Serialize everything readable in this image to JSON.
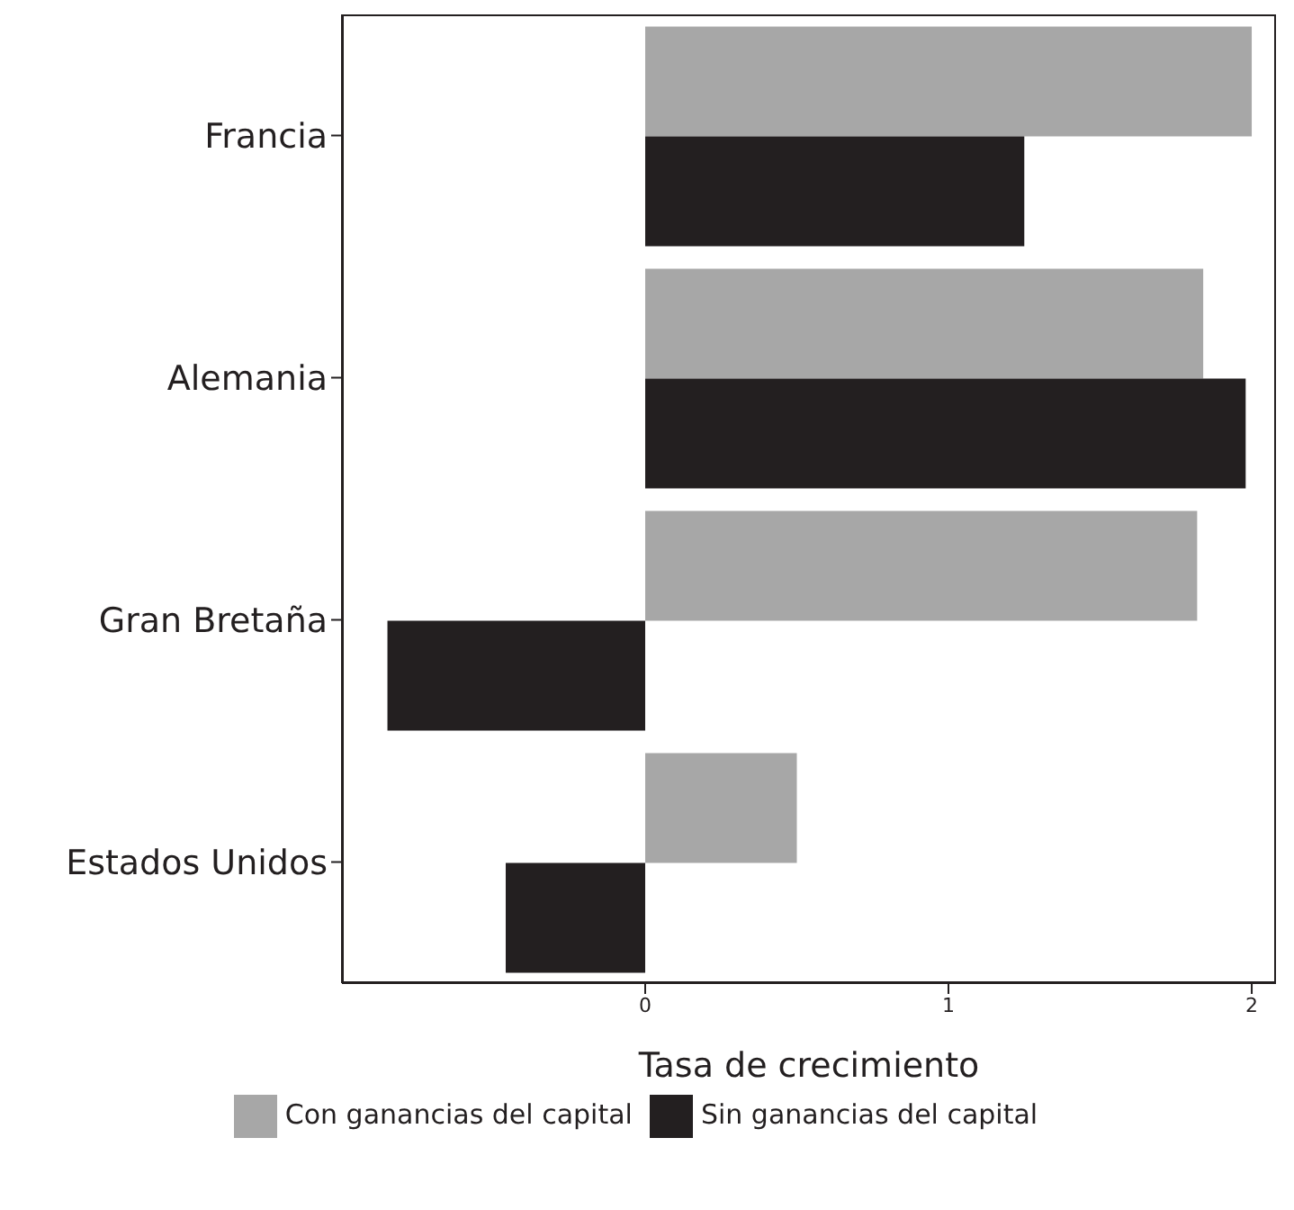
{
  "chart_data": {
    "type": "bar",
    "orientation": "horizontal",
    "xlabel": "Tasa de crecimiento",
    "categories": [
      "Francia",
      "Alemania",
      "Gran Bretaña",
      "Estados Unidos"
    ],
    "series": [
      {
        "name": "Con ganancias del capital",
        "color": "#a7a7a7",
        "values": [
          2.0,
          1.84,
          1.82,
          0.5
        ]
      },
      {
        "name": "Sin ganancias del capital",
        "color": "#231f20",
        "values": [
          1.25,
          1.98,
          -0.85,
          -0.46
        ]
      }
    ],
    "xlim": [
      -1,
      2.08
    ],
    "xticks": [
      0,
      1,
      2
    ],
    "grid": false,
    "legend": "bottom"
  }
}
